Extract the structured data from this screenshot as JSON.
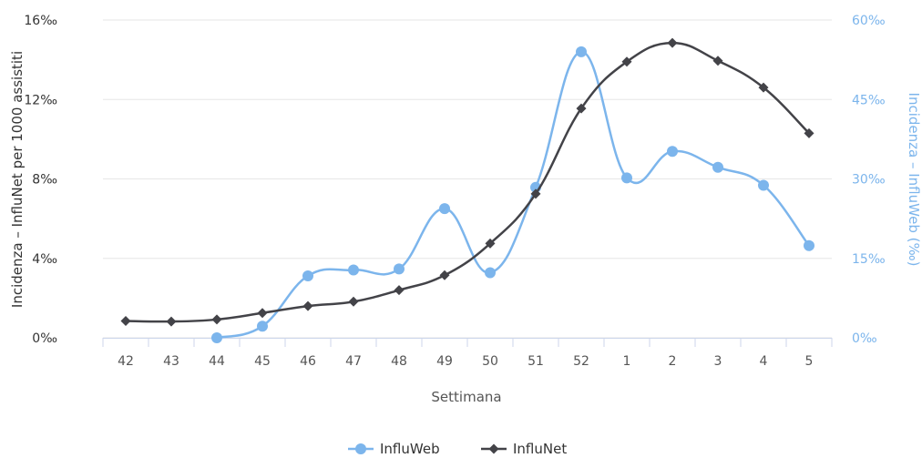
{
  "chart_data": {
    "type": "line",
    "xlabel": "Settimana",
    "categories": [
      "42",
      "43",
      "44",
      "45",
      "46",
      "47",
      "48",
      "49",
      "50",
      "51",
      "52",
      "1",
      "2",
      "3",
      "4",
      "5"
    ],
    "y_left": {
      "label": "Incidenza – InfluNet per 1000 assistiti",
      "ticks": [
        "0‰",
        "4‰",
        "8‰",
        "12‰",
        "16‰"
      ],
      "ylim": [
        0,
        16
      ]
    },
    "y_right": {
      "label": "Incidenza – InfluWeb (‰)",
      "ticks": [
        "0‰",
        "15‰",
        "30‰",
        "45‰",
        "60‰"
      ],
      "ylim": [
        0,
        60
      ]
    },
    "series": [
      {
        "name": "InfluWeb",
        "axis": "right",
        "color": "#7cb5ec",
        "marker": "circle",
        "values": [
          null,
          null,
          0,
          2.2,
          11.7,
          12.8,
          13.0,
          24.4,
          12.3,
          28.4,
          54.0,
          30.2,
          35.2,
          32.2,
          28.8,
          17.4
        ]
      },
      {
        "name": "InfluNet",
        "axis": "left",
        "color": "#434348",
        "marker": "diamond",
        "values": [
          0.85,
          0.82,
          0.92,
          1.25,
          1.6,
          1.82,
          2.4,
          3.15,
          4.75,
          7.25,
          11.55,
          13.9,
          14.85,
          13.95,
          12.6,
          10.3
        ]
      }
    ],
    "grid": true,
    "legend": "bottom-center"
  }
}
